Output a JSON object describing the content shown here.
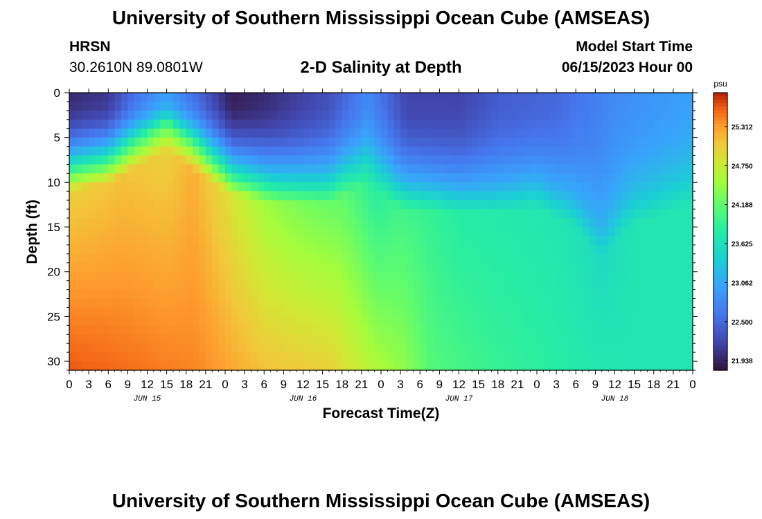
{
  "header": {
    "title": "University of Southern Mississippi Ocean Cube (AMSEAS)",
    "station": "HRSN",
    "coords": "30.2610N  89.0801W",
    "plot_title": "2-D Salinity at Depth",
    "start_label": "Model Start Time",
    "start_date": "06/15/2023 Hour 00"
  },
  "footer": {
    "title": "University of Southern Mississippi Ocean Cube (AMSEAS)"
  },
  "chart_data": {
    "type": "heatmap",
    "title": "2-D Salinity at Depth",
    "xlabel": "Forecast Time(Z)",
    "ylabel": "Depth (ft)",
    "x_unit": "hours since 06/15/2023 00Z",
    "xlim": [
      0,
      96
    ],
    "ylim": [
      0,
      31
    ],
    "x_tick_labels": [
      "0",
      "3",
      "6",
      "9",
      "12",
      "15",
      "18",
      "21",
      "0",
      "3",
      "6",
      "9",
      "12",
      "15",
      "18",
      "21",
      "0",
      "3",
      "6",
      "9",
      "12",
      "15",
      "18",
      "21",
      "0",
      "3",
      "6",
      "9",
      "12",
      "15",
      "18",
      "21",
      "0"
    ],
    "y_ticks": [
      0,
      5,
      10,
      15,
      20,
      25,
      30
    ],
    "day_labels": [
      {
        "label": "JUN 15",
        "hour": 12
      },
      {
        "label": "JUN 16",
        "hour": 36
      },
      {
        "label": "JUN 17",
        "hour": 60
      },
      {
        "label": "JUN 18",
        "hour": 84
      }
    ],
    "colorbar": {
      "unit": "psu",
      "min": 21.8,
      "max": 25.8,
      "ticks": [
        "25.312",
        "24.750",
        "24.188",
        "23.625",
        "23.062",
        "22.500",
        "21.938"
      ]
    },
    "fields": {
      "surface_salinity_psu_at_hours": [
        [
          0,
          22.0
        ],
        [
          6,
          22.1
        ],
        [
          10,
          22.6
        ],
        [
          15,
          23.0
        ],
        [
          19,
          22.6
        ],
        [
          25,
          21.9
        ],
        [
          30,
          22.0
        ],
        [
          40,
          22.3
        ],
        [
          46,
          22.8
        ],
        [
          52,
          22.2
        ],
        [
          60,
          22.2
        ],
        [
          66,
          22.4
        ],
        [
          75,
          22.5
        ],
        [
          84,
          22.8
        ],
        [
          90,
          22.9
        ],
        [
          96,
          23.0
        ]
      ],
      "halocline_depth_ft_at_hours": [
        [
          0,
          8
        ],
        [
          6,
          7.2
        ],
        [
          10,
          5.5
        ],
        [
          15,
          3.5
        ],
        [
          19,
          5.5
        ],
        [
          25,
          8.5
        ],
        [
          32,
          9.5
        ],
        [
          40,
          9.5
        ],
        [
          46,
          7.0
        ],
        [
          51,
          10
        ],
        [
          60,
          10.5
        ],
        [
          66,
          10.5
        ],
        [
          72,
          10
        ],
        [
          78,
          12
        ],
        [
          82,
          15.5
        ],
        [
          86,
          12
        ],
        [
          92,
          10.5
        ],
        [
          96,
          9.5
        ]
      ],
      "bottom_salinity_psu_at_hours": [
        [
          0,
          25.6
        ],
        [
          10,
          25.5
        ],
        [
          20,
          25.4
        ],
        [
          30,
          25.1
        ],
        [
          40,
          25.0
        ],
        [
          47,
          24.6
        ],
        [
          52,
          24.4
        ],
        [
          56,
          24.1
        ],
        [
          64,
          23.95
        ],
        [
          72,
          23.85
        ],
        [
          80,
          23.75
        ],
        [
          88,
          23.7
        ],
        [
          96,
          23.7
        ]
      ],
      "mid_salinity_psu_at_hours": [
        [
          0,
          25.0
        ],
        [
          8,
          25.1
        ],
        [
          15,
          25.0
        ],
        [
          19,
          25.2
        ],
        [
          24,
          24.9
        ],
        [
          30,
          24.5
        ],
        [
          36,
          24.3
        ],
        [
          42,
          24.2
        ],
        [
          47,
          23.8
        ],
        [
          51,
          24.0
        ],
        [
          56,
          23.9
        ],
        [
          60,
          23.8
        ],
        [
          68,
          23.75
        ],
        [
          76,
          23.7
        ],
        [
          82,
          23.55
        ],
        [
          88,
          23.7
        ],
        [
          96,
          23.7
        ]
      ]
    }
  }
}
